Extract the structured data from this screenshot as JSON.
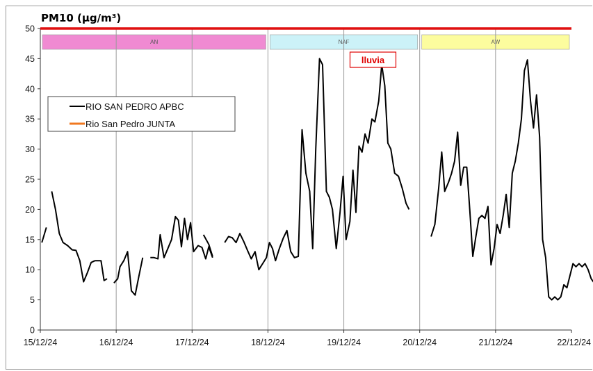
{
  "chart_data": {
    "type": "line",
    "title": "PM10 (µg/m³)",
    "xlabel": "",
    "ylabel": "",
    "ylim": [
      0,
      50
    ],
    "yticks": [
      0,
      5,
      10,
      15,
      20,
      25,
      30,
      35,
      40,
      45,
      50
    ],
    "xlim": [
      "15/12/24",
      "22/12/24"
    ],
    "xtick_labels": [
      "15/12/24",
      "16/12/24",
      "17/12/24",
      "18/12/24",
      "19/12/24",
      "20/12/24",
      "21/12/24",
      "22/12/24"
    ],
    "grid": "vertical at day boundaries",
    "legend": {
      "placement": "upper-left",
      "entries": [
        "RIO SAN PEDRO APBC",
        "Rio San Pedro JUNTA"
      ]
    },
    "bands": [
      {
        "label": "AN",
        "from": "15/12/24",
        "to": "18/12/24",
        "color": "#f08ad2"
      },
      {
        "label": "NAF",
        "from": "18/12/24",
        "to": "20/12/24",
        "color": "#ccf2f8"
      },
      {
        "label": "AW",
        "from": "20/12/24",
        "to": "22/12/24",
        "color": "#fcfc9e"
      }
    ],
    "annotations": [
      {
        "text": "lluvia",
        "near_x_day": 4.1
      }
    ],
    "limit_line": {
      "value": 50,
      "color": "#e01010"
    },
    "series": [
      {
        "name": "RIO SAN PEDRO APBC",
        "color": "#000000",
        "x_unit": "days since 15/12/24 00:00",
        "points": [
          [
            0.02,
            14.5
          ],
          [
            0.08,
            17
          ],
          null,
          [
            0.15,
            23
          ],
          [
            0.2,
            20
          ],
          [
            0.25,
            16
          ],
          [
            0.3,
            14.5
          ],
          [
            0.36,
            14
          ],
          [
            0.42,
            13.3
          ],
          [
            0.47,
            13.2
          ],
          [
            0.52,
            11.5
          ],
          [
            0.57,
            8
          ],
          [
            0.62,
            9.5
          ],
          [
            0.67,
            11.2
          ],
          [
            0.72,
            11.5
          ],
          null,
          [
            0.72,
            11.5
          ],
          [
            0.8,
            11.5
          ],
          [
            0.84,
            8.2
          ],
          [
            0.88,
            8.5
          ],
          null,
          [
            0.97,
            7.8
          ],
          [
            1.02,
            8.5
          ],
          [
            1.05,
            10.5
          ],
          [
            1.1,
            11.5
          ],
          [
            1.15,
            13
          ],
          [
            1.2,
            6.5
          ],
          [
            1.25,
            5.8
          ],
          [
            1.3,
            9
          ],
          [
            1.35,
            12
          ],
          null,
          [
            1.45,
            12
          ],
          [
            1.5,
            12
          ],
          [
            1.55,
            11.8
          ],
          [
            1.58,
            15.8
          ],
          [
            1.63,
            12
          ],
          [
            1.68,
            13.5
          ],
          [
            1.73,
            15
          ],
          [
            1.78,
            18.8
          ],
          [
            1.82,
            18.2
          ],
          [
            1.86,
            13.8
          ],
          [
            1.9,
            18.5
          ],
          [
            1.94,
            15
          ],
          [
            1.98,
            17.8
          ],
          [
            2.02,
            13
          ],
          [
            2.08,
            14
          ],
          [
            2.13,
            13.7
          ],
          [
            2.18,
            11.8
          ],
          [
            2.22,
            13.8
          ],
          [
            2.27,
            12
          ],
          null,
          [
            2.15,
            15.8
          ],
          [
            2.22,
            14.2
          ],
          [
            2.27,
            12.2
          ],
          null,
          [
            2.43,
            14.5
          ],
          [
            2.48,
            15.5
          ],
          [
            2.53,
            15.3
          ],
          [
            2.58,
            14.5
          ],
          [
            2.63,
            16
          ],
          [
            2.68,
            14.7
          ],
          [
            2.73,
            13.2
          ],
          [
            2.78,
            11.8
          ],
          [
            2.83,
            13
          ],
          [
            2.88,
            10
          ],
          [
            2.93,
            11
          ],
          [
            2.98,
            12
          ],
          [
            3.02,
            14.5
          ],
          [
            3.06,
            13.5
          ],
          [
            3.1,
            11.5
          ],
          [
            3.15,
            13.5
          ],
          [
            3.2,
            15.2
          ],
          [
            3.25,
            16.5
          ],
          [
            3.3,
            13
          ],
          [
            3.35,
            12
          ],
          [
            3.4,
            12.2
          ],
          [
            3.45,
            33.2
          ],
          [
            3.5,
            26
          ],
          [
            3.55,
            23
          ],
          [
            3.59,
            13.5
          ],
          [
            3.63,
            30
          ],
          [
            3.68,
            45
          ],
          [
            3.72,
            44
          ],
          [
            3.77,
            23
          ],
          [
            3.81,
            22
          ],
          [
            3.85,
            20
          ],
          [
            3.9,
            13.5
          ],
          [
            3.95,
            19.5
          ],
          [
            3.99,
            25.5
          ],
          [
            4.03,
            15
          ],
          [
            4.08,
            18
          ],
          [
            4.12,
            26.5
          ],
          [
            4.16,
            19.5
          ],
          [
            4.2,
            30.5
          ],
          [
            4.24,
            29.5
          ],
          [
            4.28,
            32.5
          ],
          [
            4.32,
            31
          ],
          [
            4.37,
            35
          ],
          [
            4.41,
            34.5
          ],
          [
            4.46,
            38
          ],
          [
            4.5,
            44
          ],
          [
            4.54,
            40.5
          ],
          [
            4.58,
            31
          ],
          [
            4.62,
            30
          ],
          [
            4.67,
            26
          ],
          [
            4.72,
            25.5
          ],
          [
            4.77,
            23.5
          ],
          [
            4.82,
            21
          ],
          [
            4.86,
            20
          ],
          null,
          [
            5.15,
            15.5
          ],
          [
            5.2,
            17.5
          ],
          [
            5.25,
            23.5
          ],
          [
            5.29,
            29.5
          ],
          [
            5.33,
            23
          ],
          [
            5.38,
            24.5
          ],
          [
            5.42,
            26
          ],
          [
            5.46,
            28
          ],
          [
            5.5,
            32.8
          ],
          [
            5.54,
            24
          ],
          [
            5.58,
            27
          ],
          [
            5.62,
            27
          ],
          [
            5.66,
            20
          ],
          [
            5.7,
            12.2
          ],
          [
            5.74,
            15.5
          ],
          [
            5.78,
            18.5
          ],
          [
            5.82,
            19
          ],
          [
            5.86,
            18.5
          ],
          [
            5.9,
            20.5
          ],
          [
            5.94,
            10.8
          ],
          [
            5.98,
            13.5
          ],
          [
            6.02,
            17.5
          ],
          [
            6.06,
            16
          ],
          [
            6.1,
            19
          ],
          [
            6.14,
            22.5
          ],
          [
            6.18,
            17
          ],
          [
            6.22,
            26
          ],
          [
            6.26,
            28
          ],
          [
            6.3,
            31
          ],
          [
            6.34,
            35
          ],
          [
            6.38,
            43
          ],
          [
            6.42,
            44.8
          ],
          [
            6.46,
            38
          ],
          [
            6.5,
            33.5
          ],
          [
            6.54,
            39
          ],
          [
            6.58,
            32
          ],
          [
            6.62,
            15
          ],
          [
            6.66,
            12
          ],
          [
            6.7,
            5.5
          ],
          [
            6.74,
            5
          ],
          [
            6.78,
            5.5
          ],
          [
            6.82,
            5
          ],
          [
            6.86,
            5.5
          ],
          [
            6.9,
            7.5
          ],
          [
            6.94,
            7
          ],
          [
            6.98,
            9
          ],
          [
            7.02,
            11
          ],
          [
            7.06,
            10.5
          ],
          [
            7.1,
            11
          ],
          [
            7.14,
            10.5
          ],
          [
            7.18,
            11
          ],
          [
            7.22,
            10
          ],
          [
            7.26,
            8.5
          ],
          [
            7.3,
            7.8
          ],
          [
            7.34,
            8
          ],
          [
            7.38,
            10
          ],
          [
            7.42,
            12.8
          ],
          [
            7.46,
            12.5
          ],
          [
            7.5,
            13
          ],
          [
            7.54,
            12.3
          ],
          [
            7.58,
            12.5
          ],
          [
            7.62,
            13
          ],
          [
            7.66,
            12.2
          ],
          [
            7.7,
            13.8
          ]
        ]
      },
      {
        "name": "Rio San Pedro JUNTA",
        "color": "#f07820",
        "points": []
      }
    ]
  },
  "note": {
    "text": "lluvia"
  }
}
